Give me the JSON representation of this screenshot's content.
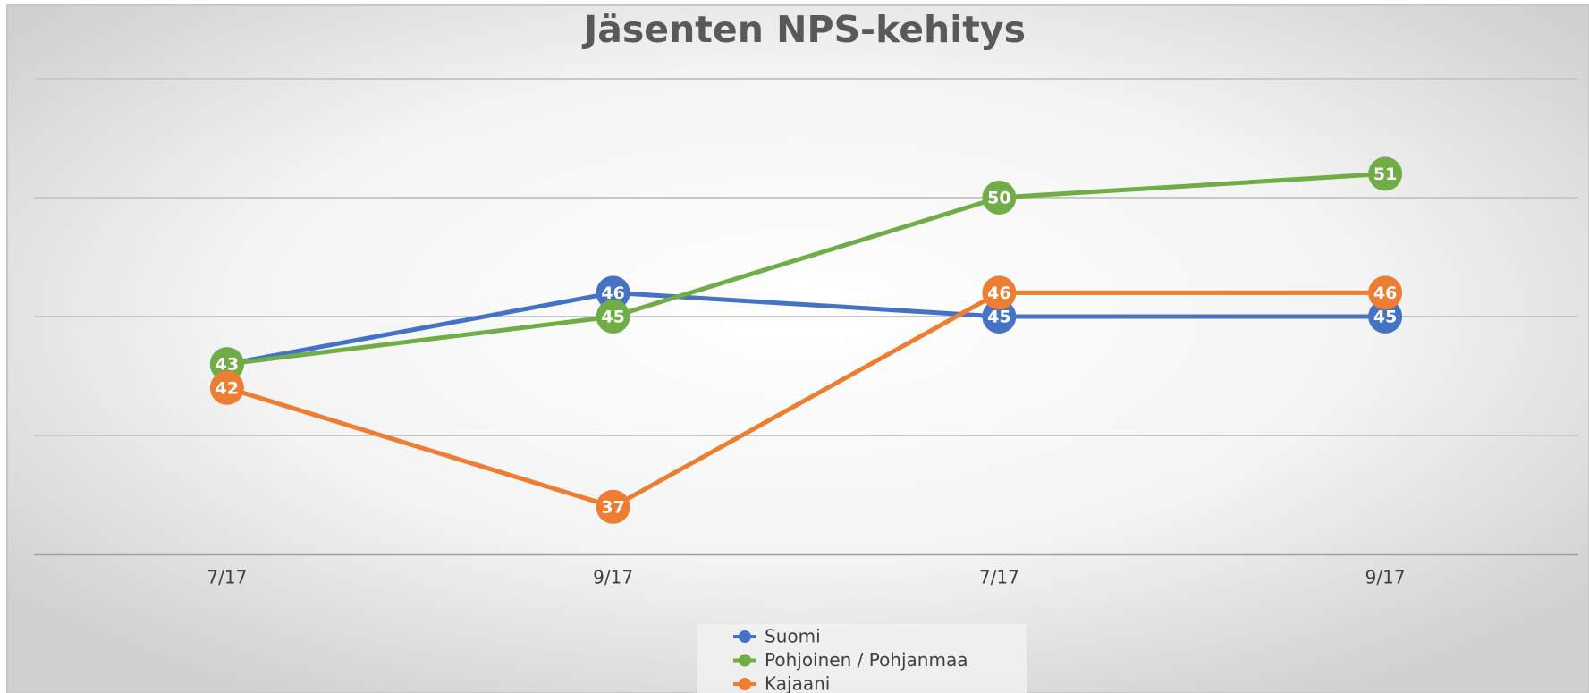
{
  "chart_data": {
    "type": "line",
    "title": "Jäsenten NPS-kehitys",
    "categories": [
      "7/17",
      "9/17",
      "7/17",
      "9/17"
    ],
    "series": [
      {
        "name": "Suomi",
        "color": "#4472c4",
        "values": [
          43,
          46,
          45,
          45
        ]
      },
      {
        "name": "Pohjoinen / Pohjanmaa",
        "color": "#70ad47",
        "values": [
          43,
          45,
          50,
          51
        ]
      },
      {
        "name": "Kajaani",
        "color": "#ed7d31",
        "values": [
          42,
          37,
          46,
          46
        ]
      }
    ],
    "ylim": [
      35,
      55
    ],
    "yticks": [
      35,
      40,
      45,
      50,
      55
    ],
    "grid": true,
    "legend": "bottom"
  }
}
